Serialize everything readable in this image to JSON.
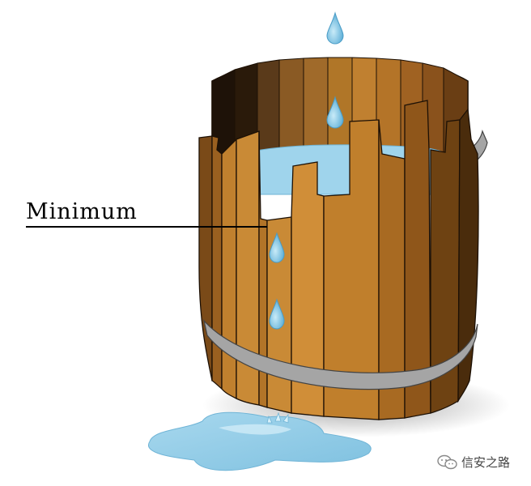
{
  "diagram": {
    "label": "Minimum",
    "watermark": "信安之路",
    "watermark_icon": "wechat-icon"
  },
  "colors": {
    "wood_light": "#c88a35",
    "wood_mid": "#a86a22",
    "wood_dark": "#6e4412",
    "wood_shadow": "#2a1a08",
    "hoop": "#9a9a9a",
    "water": "#8fcbe6",
    "water_light": "#bfe2f2",
    "outline": "#1c1005"
  }
}
